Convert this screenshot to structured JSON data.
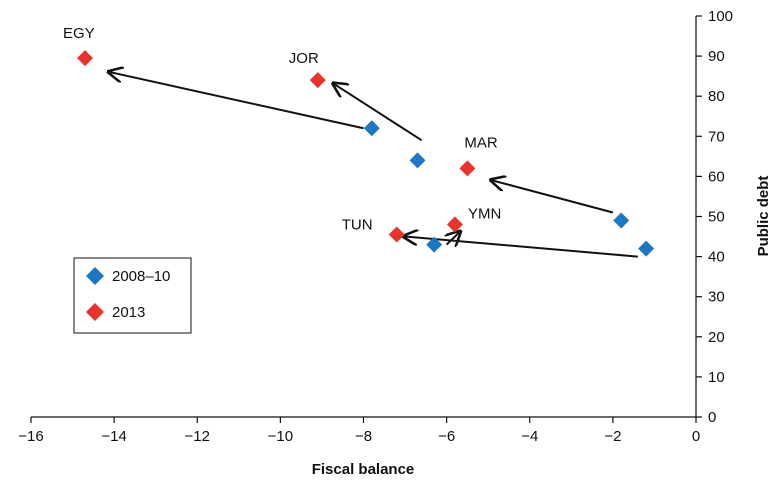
{
  "chart_data": {
    "type": "scatter",
    "title": "",
    "xlabel": "Fiscal balance",
    "ylabel": "Public debt",
    "xlim": [
      -16,
      0
    ],
    "ylim": [
      0,
      100
    ],
    "x_ticks": [
      -16,
      -14,
      -12,
      -10,
      -8,
      -6,
      -4,
      -2,
      0
    ],
    "y_ticks": [
      0,
      10,
      20,
      30,
      40,
      50,
      60,
      70,
      80,
      90,
      100
    ],
    "x_tick_labels": [
      "−16",
      "−14",
      "−12",
      "−10",
      "−8",
      "−6",
      "−4",
      "−2",
      "0"
    ],
    "y_tick_labels": [
      "0",
      "10",
      "20",
      "30",
      "40",
      "50",
      "60",
      "70",
      "80",
      "90",
      "100"
    ],
    "grid": false,
    "y_axis_position": "right",
    "legend_position": "left",
    "series": [
      {
        "name": "2008–10",
        "color": "#1f77c4",
        "marker": "diamond",
        "points": [
          {
            "x": -7.8,
            "y": 72
          },
          {
            "x": -6.7,
            "y": 64
          },
          {
            "x": -1.8,
            "y": 49
          },
          {
            "x": -6.3,
            "y": 43
          },
          {
            "x": -1.2,
            "y": 42
          }
        ]
      },
      {
        "name": "2013",
        "color": "#e8332c",
        "marker": "diamond",
        "points": [
          {
            "x": -14.7,
            "y": 89.5
          },
          {
            "x": -9.1,
            "y": 84
          },
          {
            "x": -5.5,
            "y": 62
          },
          {
            "x": -7.2,
            "y": 45.5
          },
          {
            "x": -5.8,
            "y": 48
          }
        ]
      }
    ],
    "annotations": [
      {
        "text": "EGY"
      },
      {
        "text": "JOR"
      },
      {
        "text": "MAR"
      },
      {
        "text": "TUN"
      },
      {
        "text": "YMN"
      }
    ],
    "arrows": [
      {
        "from": [
          -8.0,
          72
        ],
        "to": [
          -14.1,
          86
        ]
      },
      {
        "from": [
          -6.6,
          69
        ],
        "to": [
          -8.7,
          83
        ]
      },
      {
        "from": [
          -2.0,
          51
        ],
        "to": [
          -4.9,
          59
        ]
      },
      {
        "from": [
          -1.4,
          40
        ],
        "to": [
          -7.0,
          45
        ]
      },
      {
        "from": [
          -6.0,
          43
        ],
        "to": [
          -5.7,
          46
        ]
      }
    ]
  }
}
